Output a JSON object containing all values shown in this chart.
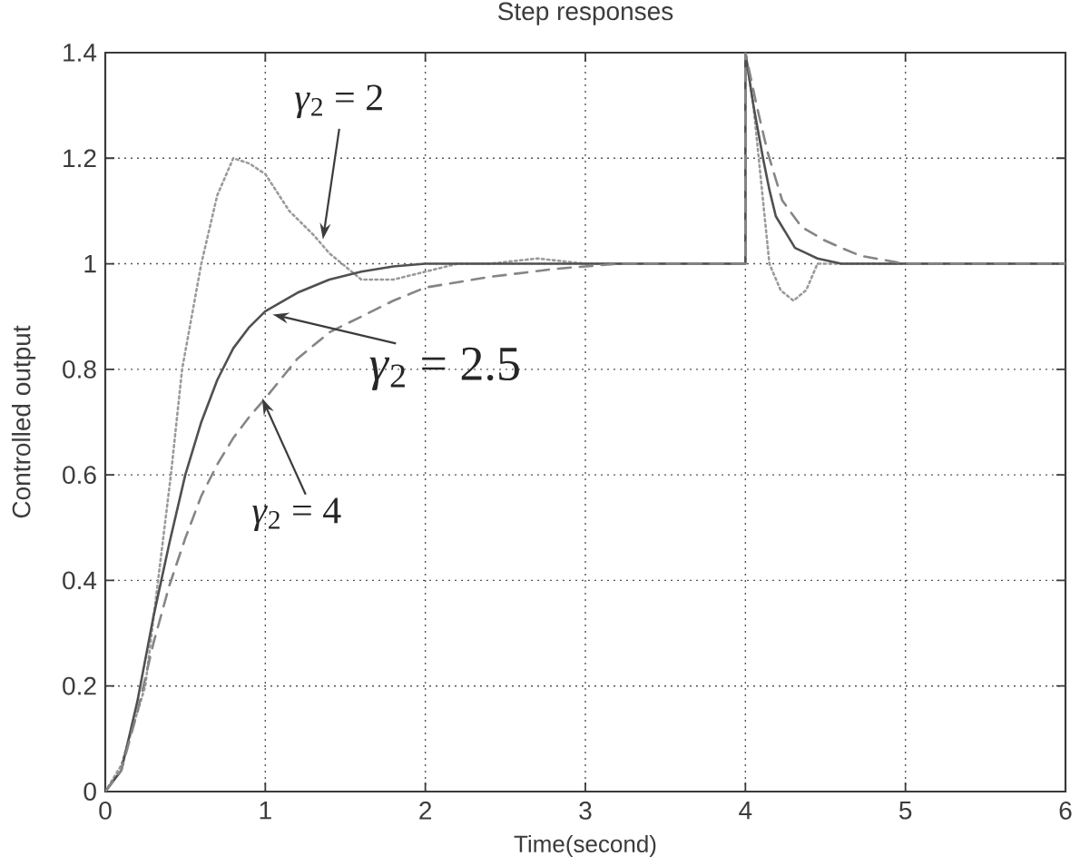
{
  "chart_data": {
    "type": "line",
    "title": "Step responses",
    "xlabel": "Time(second)",
    "ylabel": "Controlled output",
    "xlim": [
      0,
      6
    ],
    "ylim": [
      0,
      1.4
    ],
    "xticks": [
      0,
      1,
      2,
      3,
      4,
      5,
      6
    ],
    "yticks": [
      0,
      0.2,
      0.4,
      0.6,
      0.8,
      1,
      1.2,
      1.4
    ],
    "grid": true,
    "series": [
      {
        "color": "#9a9a9a",
        "line_style": "dotted",
        "x": [
          0,
          0.1,
          0.2,
          0.25,
          0.33,
          0.41,
          0.48,
          0.6,
          0.7,
          0.8,
          0.9,
          1.0,
          1.15,
          1.3,
          1.4,
          1.6,
          1.8,
          2.0,
          2.2,
          2.4,
          2.7,
          3.0,
          4,
          4,
          4.05,
          4.1,
          4.15,
          4.22,
          4.3,
          4.38,
          4.45,
          4.6,
          6
        ],
        "values": [
          0,
          0.05,
          0.15,
          0.2,
          0.4,
          0.6,
          0.8,
          1.0,
          1.13,
          1.2,
          1.19,
          1.17,
          1.1,
          1.055,
          1.02,
          0.97,
          0.97,
          0.985,
          1.0,
          1.0,
          1.01,
          1.0,
          1,
          1.4,
          1.3,
          1.15,
          1.0,
          0.95,
          0.93,
          0.95,
          1.0,
          1.0,
          1.0
        ]
      },
      {
        "color": "#505050",
        "line_style": "solid",
        "x": [
          0,
          0.1,
          0.2,
          0.3,
          0.4,
          0.5,
          0.6,
          0.7,
          0.8,
          0.9,
          1.0,
          1.2,
          1.4,
          1.6,
          1.8,
          2.0,
          4,
          4,
          4.05,
          4.11,
          4.15,
          4.19,
          4.25,
          4.31,
          4.38,
          4.45,
          4.6,
          6
        ],
        "values": [
          0,
          0.04,
          0.17,
          0.33,
          0.47,
          0.6,
          0.7,
          0.78,
          0.84,
          0.88,
          0.91,
          0.945,
          0.97,
          0.985,
          0.995,
          1,
          1,
          1.4,
          1.3,
          1.2,
          1.14,
          1.09,
          1.06,
          1.03,
          1.02,
          1.01,
          1,
          1
        ]
      },
      {
        "color": "#858585",
        "line_style": "dashed",
        "x": [
          0,
          0.1,
          0.2,
          0.3,
          0.4,
          0.5,
          0.6,
          0.7,
          0.8,
          0.9,
          1.0,
          1.2,
          1.4,
          1.6,
          1.8,
          2.0,
          2.4,
          2.8,
          3.2,
          4,
          4,
          4.07,
          4.14,
          4.23,
          4.35,
          4.49,
          4.6,
          4.72,
          5.0,
          6
        ],
        "values": [
          0,
          0.04,
          0.15,
          0.28,
          0.39,
          0.48,
          0.56,
          0.62,
          0.67,
          0.71,
          0.745,
          0.82,
          0.87,
          0.9,
          0.93,
          0.955,
          0.975,
          0.99,
          1,
          1,
          1.4,
          1.3,
          1.21,
          1.12,
          1.07,
          1.045,
          1.03,
          1.015,
          1,
          1
        ]
      }
    ],
    "annotations": [
      {
        "text": "*γ*$_{2}$ = 2",
        "x": 1.36,
        "y": 1.046
      },
      {
        "text": "*γ*$_{2}$ = 2.5",
        "x": 1.045,
        "y": 0.904
      },
      {
        "text": "*γ*$_{2}$ = 4",
        "x": 0.98,
        "y": 0.745
      }
    ]
  }
}
